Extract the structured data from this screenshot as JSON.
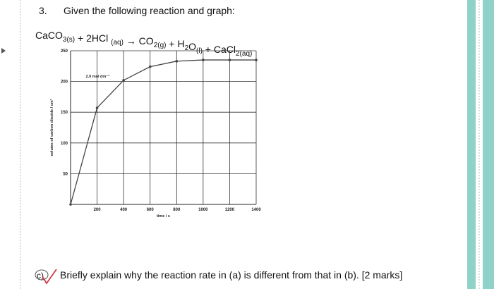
{
  "question": {
    "number": "3.",
    "prompt": "Given the following reaction and graph:",
    "equation": [
      {
        "main": "CaCO",
        "sub": "3(s)"
      },
      {
        "main": " + 2HCl ",
        "sub": "(aq)"
      },
      {
        "main": " → CO",
        "sub": "2(g)"
      },
      {
        "main": " + H",
        "sub": "2"
      },
      {
        "main": "O",
        "sub": "(l)"
      },
      {
        "main": "  +  CaCl",
        "sub": "2(aq)"
      }
    ]
  },
  "chart_data": {
    "type": "line",
    "x_label": "time / s",
    "y_label": "volume of carbon dioxide / cm³",
    "x": [
      0,
      200,
      400,
      600,
      800,
      1000,
      1200,
      1400
    ],
    "series": [
      {
        "name": "2.0 mol dm⁻³",
        "color": "#444444",
        "values": [
          0,
          157,
          202,
          224,
          233,
          235,
          235,
          235
        ]
      }
    ],
    "xlim": [
      0,
      1400
    ],
    "ylim": [
      0,
      250
    ],
    "xticks": [
      200,
      400,
      600,
      800,
      1000,
      1200,
      1400
    ],
    "yticks": [
      50,
      100,
      150,
      200,
      250
    ],
    "grid": true
  },
  "part_c": {
    "label": "c)",
    "text": "Briefly explain why the reaction rate in (a) is different from that in (b). [2 marks]"
  }
}
